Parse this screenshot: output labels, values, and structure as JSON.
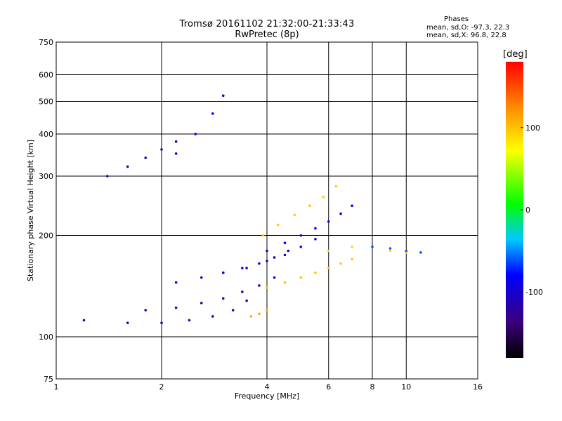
{
  "header": {
    "title_line1": "Tromsø 20161102 21:32:00-21:33:43",
    "title_line2": "RwPretec (8p)"
  },
  "phases": {
    "title": "Phases",
    "o_mode": "mean, sd,O: -97.3, 22.3",
    "x_mode": "mean, sd,X:  96.8, 22.8"
  },
  "colorbar": {
    "unit_label": "[deg]",
    "range": [
      -180,
      180
    ],
    "ticks": [
      "100",
      "0",
      "-100"
    ],
    "tick_values": [
      100,
      0,
      -100
    ]
  },
  "chart_data": {
    "type": "scatter",
    "xlabel": "Frequency [MHz]",
    "ylabel": "Stationary phase Virtual Height [km]",
    "xscale": "log",
    "yscale": "log",
    "xlim": [
      1,
      16
    ],
    "ylim": [
      75,
      750
    ],
    "xticks": [
      1,
      2,
      4,
      6,
      8,
      10,
      16
    ],
    "xtick_labels": [
      "1",
      "2",
      "4",
      "6",
      "8",
      "10",
      "16"
    ],
    "yticks": [
      75,
      100,
      200,
      300,
      400,
      500,
      600,
      750
    ],
    "ytick_labels": [
      "75",
      "100",
      "200",
      "300",
      "400",
      "500",
      "600",
      "750"
    ],
    "grid": true,
    "traces": [
      {
        "name": "",
        "phase": -115,
        "x": [
          1.2,
          1.6,
          2.0,
          2.4,
          2.8,
          3.2,
          3.5
        ],
        "y": [
          112,
          110,
          110,
          112,
          115,
          120,
          128
        ]
      },
      {
        "name": "",
        "phase": -112,
        "x": [
          1.8,
          2.2,
          2.6,
          3.0,
          3.4,
          3.8,
          4.2
        ],
        "y": [
          120,
          122,
          126,
          130,
          136,
          142,
          150
        ]
      },
      {
        "name": "",
        "phase": -105,
        "x": [
          2.2,
          2.6,
          3.0,
          3.4,
          3.8,
          4.2,
          4.6
        ],
        "y": [
          145,
          150,
          155,
          160,
          165,
          172,
          180
        ]
      },
      {
        "name": "",
        "phase": -98,
        "x": [
          3.0,
          3.5,
          4.0,
          4.5,
          5.0,
          5.5
        ],
        "y": [
          155,
          160,
          168,
          175,
          185,
          195
        ]
      },
      {
        "name": "",
        "phase": -90,
        "x": [
          4.0,
          4.5,
          5.0,
          5.5,
          6.0,
          6.5,
          7.0
        ],
        "y": [
          180,
          190,
          200,
          210,
          220,
          232,
          245
        ]
      },
      {
        "name": "",
        "phase": -118,
        "x": [
          1.4,
          1.6,
          1.8,
          2.0,
          2.2
        ],
        "y": [
          300,
          320,
          340,
          360,
          380
        ]
      },
      {
        "name": "",
        "phase": -85,
        "x": [
          2.2,
          2.5,
          2.8,
          3.0
        ],
        "y": [
          350,
          400,
          460,
          520
        ]
      },
      {
        "name": "",
        "phase": 95,
        "x": [
          3.9,
          4.3,
          4.8,
          5.3,
          5.8,
          6.3
        ],
        "y": [
          200,
          215,
          230,
          245,
          260,
          280
        ]
      },
      {
        "name": "",
        "phase": 100,
        "x": [
          4.0,
          4.5,
          5.0,
          5.5,
          6.0,
          6.5,
          7.0
        ],
        "y": [
          140,
          145,
          150,
          155,
          160,
          165,
          170
        ]
      },
      {
        "name": "",
        "phase": 110,
        "x": [
          3.6,
          3.8,
          4.0
        ],
        "y": [
          115,
          117,
          120
        ]
      },
      {
        "name": "",
        "phase": 90,
        "x": [
          6.0,
          7.0,
          8.0,
          9.0,
          10.0
        ],
        "y": [
          180,
          185,
          185,
          180,
          178
        ]
      },
      {
        "name": "",
        "phase": -60,
        "x": [
          8.0,
          9.0,
          10.0,
          11.0
        ],
        "y": [
          185,
          183,
          180,
          178
        ]
      }
    ]
  }
}
